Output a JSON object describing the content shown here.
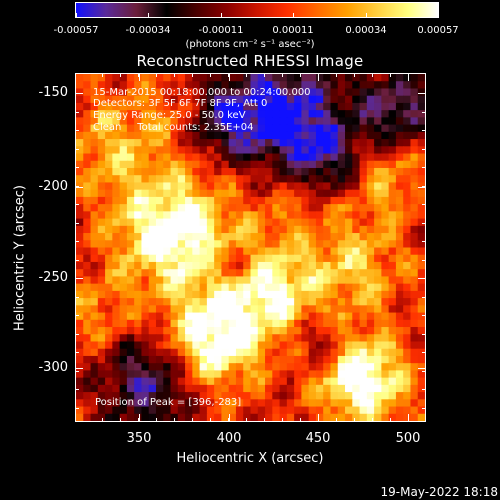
{
  "colorbar": {
    "tick_labels": [
      "-0.00057",
      "-0.00034",
      "-0.00011",
      "0.00011",
      "0.00034",
      "0.00057"
    ],
    "unit_label": "(photons cm⁻² s⁻¹ asec⁻²)",
    "colors": [
      "#1010ff",
      "#5a2a9a",
      "#6b1e3a",
      "#000000",
      "#4a0000",
      "#8b0000",
      "#cc1500",
      "#ff3000",
      "#ff6a00",
      "#ffa000",
      "#ffd040",
      "#ffff80",
      "#ffffff"
    ]
  },
  "title": "Reconstructed RHESSI Image",
  "info": {
    "line1": "15-Mar-2015 00:18:00.000 to 00:24:00.000",
    "line2": "Detectors: 3F 5F 6F 7F 8F 9F, Att 0",
    "line3": "Energy Range: 25.0 - 50.0 keV",
    "line4": "Clean     Total counts: 2.35E+04",
    "peak": "Position of Peak = [396,-283]"
  },
  "axes": {
    "xlabel": "Heliocentric X (arcsec)",
    "ylabel": "Heliocentric Y (arcsec)",
    "xticks": [
      "350",
      "400",
      "450",
      "500"
    ],
    "yticks": [
      "-150",
      "-200",
      "-250",
      "-300"
    ],
    "xlim": [
      315,
      510
    ],
    "ylim": [
      -330,
      -137
    ]
  },
  "timestamp": "19-May-2022 18:18"
}
